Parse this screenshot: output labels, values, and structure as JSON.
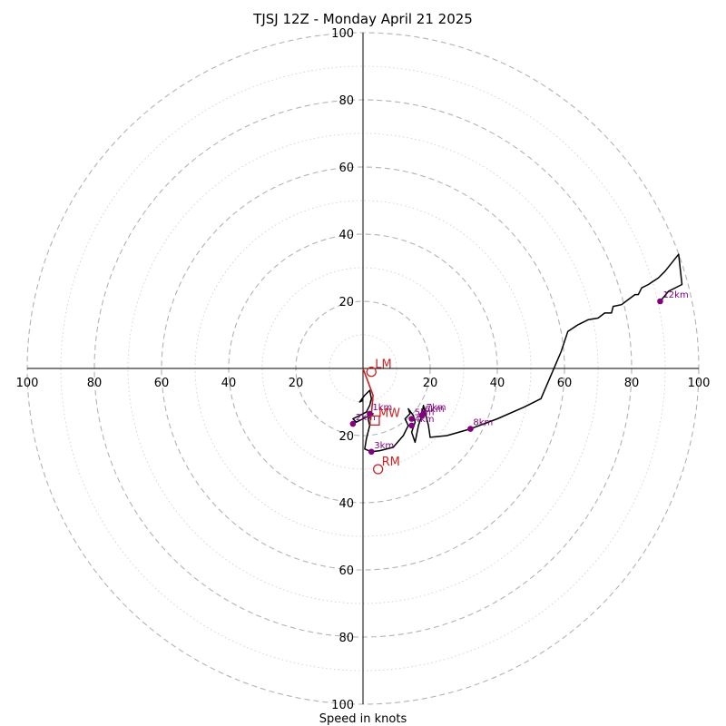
{
  "chart_data": {
    "type": "hodograph",
    "title": "TJSJ 12Z - Monday April 21 2025",
    "xlabel": "Speed in knots",
    "units": "knots",
    "range": [
      -100,
      100
    ],
    "ring_step_major": 20,
    "ring_step_minor": 10,
    "ticks": [
      20,
      40,
      60,
      80,
      100
    ],
    "tick_labels": {
      "x_left": [
        "100",
        "80",
        "60",
        "40",
        "20"
      ],
      "x_right": [
        "20",
        "40",
        "60",
        "80",
        "100"
      ],
      "y_top": [
        "100",
        "80",
        "60",
        "40",
        "20"
      ],
      "y_bottom": [
        "20",
        "40",
        "60",
        "80",
        "100"
      ]
    },
    "trace": [
      [
        0.0,
        -9.5
      ],
      [
        -1.0,
        -10.0
      ],
      [
        0.5,
        -8.0
      ],
      [
        2.0,
        -6.5
      ],
      [
        2.5,
        -9.0
      ],
      [
        2.0,
        -11.0
      ],
      [
        1.0,
        -13.0
      ],
      [
        -1.0,
        -14.0
      ],
      [
        -3.0,
        -15.0
      ],
      [
        -2.0,
        -16.0
      ],
      [
        0.0,
        -15.0
      ],
      [
        3.0,
        -13.5
      ],
      [
        1.5,
        -15.0
      ],
      [
        2.0,
        -17.0
      ],
      [
        1.0,
        -21.0
      ],
      [
        0.5,
        -24.0
      ],
      [
        2.5,
        -24.8
      ],
      [
        5.0,
        -24.5
      ],
      [
        9.0,
        -23.5
      ],
      [
        12.0,
        -20.0
      ],
      [
        13.5,
        -17.0
      ],
      [
        12.5,
        -15.0
      ],
      [
        14.0,
        -13.5
      ],
      [
        13.5,
        -12.0
      ],
      [
        15.0,
        -14.0
      ],
      [
        15.5,
        -16.0
      ],
      [
        14.5,
        -19.0
      ],
      [
        15.5,
        -22.0
      ],
      [
        16.5,
        -17.0
      ],
      [
        17.5,
        -14.0
      ],
      [
        18.0,
        -11.0
      ],
      [
        19.5,
        -17.0
      ],
      [
        20.0,
        -20.5
      ],
      [
        25.0,
        -20.0
      ],
      [
        32.0,
        -18.0
      ],
      [
        40.0,
        -15.0
      ],
      [
        48.0,
        -11.5
      ],
      [
        53.0,
        -9.0
      ],
      [
        56.0,
        -2.0
      ],
      [
        59.0,
        5.0
      ],
      [
        61.0,
        11.0
      ],
      [
        64.0,
        13.0
      ],
      [
        67.0,
        14.5
      ],
      [
        70.0,
        15.0
      ],
      [
        72.0,
        16.5
      ],
      [
        74.0,
        16.5
      ],
      [
        74.5,
        18.5
      ],
      [
        77.0,
        19.0
      ],
      [
        79.0,
        20.5
      ],
      [
        81.0,
        22.0
      ],
      [
        82.0,
        22.0
      ],
      [
        83.0,
        24.0
      ],
      [
        85.0,
        25.0
      ],
      [
        88.0,
        27.0
      ],
      [
        90.0,
        29.0
      ],
      [
        94.0,
        34.0
      ],
      [
        95.0,
        25.0
      ],
      [
        91.0,
        23.0
      ],
      [
        88.5,
        20.0
      ]
    ],
    "height_markers": [
      {
        "label": "1km",
        "u": 2.0,
        "v": -13.5
      },
      {
        "label": "2km",
        "u": -3.0,
        "v": -16.5
      },
      {
        "label": "3km",
        "u": 2.5,
        "v": -24.8
      },
      {
        "label": "4km",
        "u": 14.5,
        "v": -17.0
      },
      {
        "label": "5km",
        "u": 14.5,
        "v": -15.0
      },
      {
        "label": "6km",
        "u": 17.5,
        "v": -14.0
      },
      {
        "label": "7km",
        "u": 18.0,
        "v": -13.5
      },
      {
        "label": "8km",
        "u": 32.0,
        "v": -18.0
      },
      {
        "label": "12km",
        "u": 88.5,
        "v": 20.0
      }
    ],
    "motion_markers": [
      {
        "label": "LM",
        "u": 2.5,
        "v": -1.0,
        "shape": "circle"
      },
      {
        "label": "MW",
        "u": 3.5,
        "v": -15.5,
        "shape": "square"
      },
      {
        "label": "RM",
        "u": 4.5,
        "v": -30.0,
        "shape": "circle"
      }
    ],
    "red_line": [
      [
        0.0,
        0.0
      ],
      [
        1.5,
        -4.0
      ],
      [
        3.0,
        -8.0
      ],
      [
        2.5,
        -13.5
      ]
    ],
    "colors": {
      "trace": "#000000",
      "heights": "#800080",
      "motion": "#cc2222",
      "ring": "#b3b3b3"
    }
  }
}
